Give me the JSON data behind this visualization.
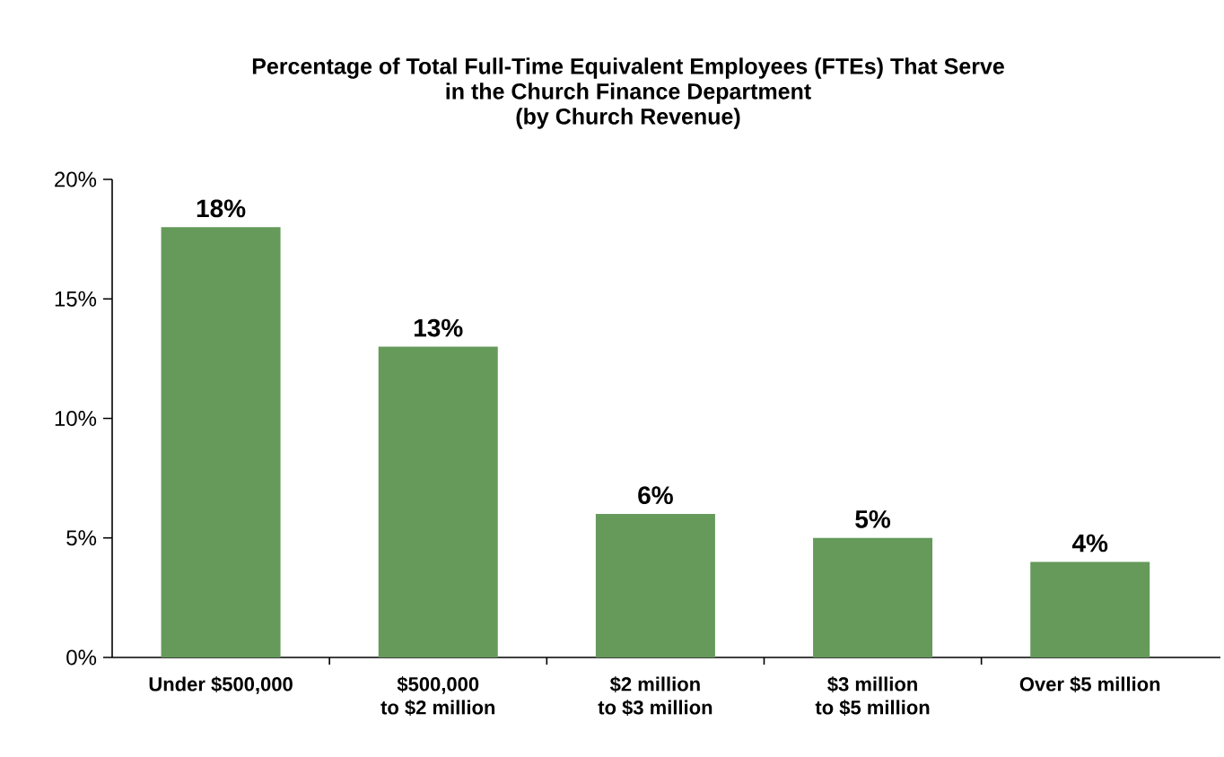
{
  "chart_data": {
    "type": "bar",
    "title": "Percentage of Total Full-Time Equivalent Employees (FTEs) That Serve\nin the Church Finance Department\n(by Church Revenue)",
    "categories": [
      "Under $500,000",
      "$500,000\nto $2 million",
      "$2 million\nto $3 million",
      "$3 million\nto $5 million",
      "Over $5 million"
    ],
    "values": [
      18,
      13,
      6,
      5,
      4
    ],
    "value_labels": [
      "18%",
      "13%",
      "6%",
      "5%",
      "4%"
    ],
    "color": "#659a5a",
    "ylim": [
      0,
      20
    ],
    "yticks": [
      {
        "value": 0,
        "label": "0%"
      },
      {
        "value": 5,
        "label": "5%"
      },
      {
        "value": 10,
        "label": "10%"
      },
      {
        "value": 15,
        "label": "15%"
      },
      {
        "value": 20,
        "label": "20%"
      }
    ],
    "grid": false
  }
}
